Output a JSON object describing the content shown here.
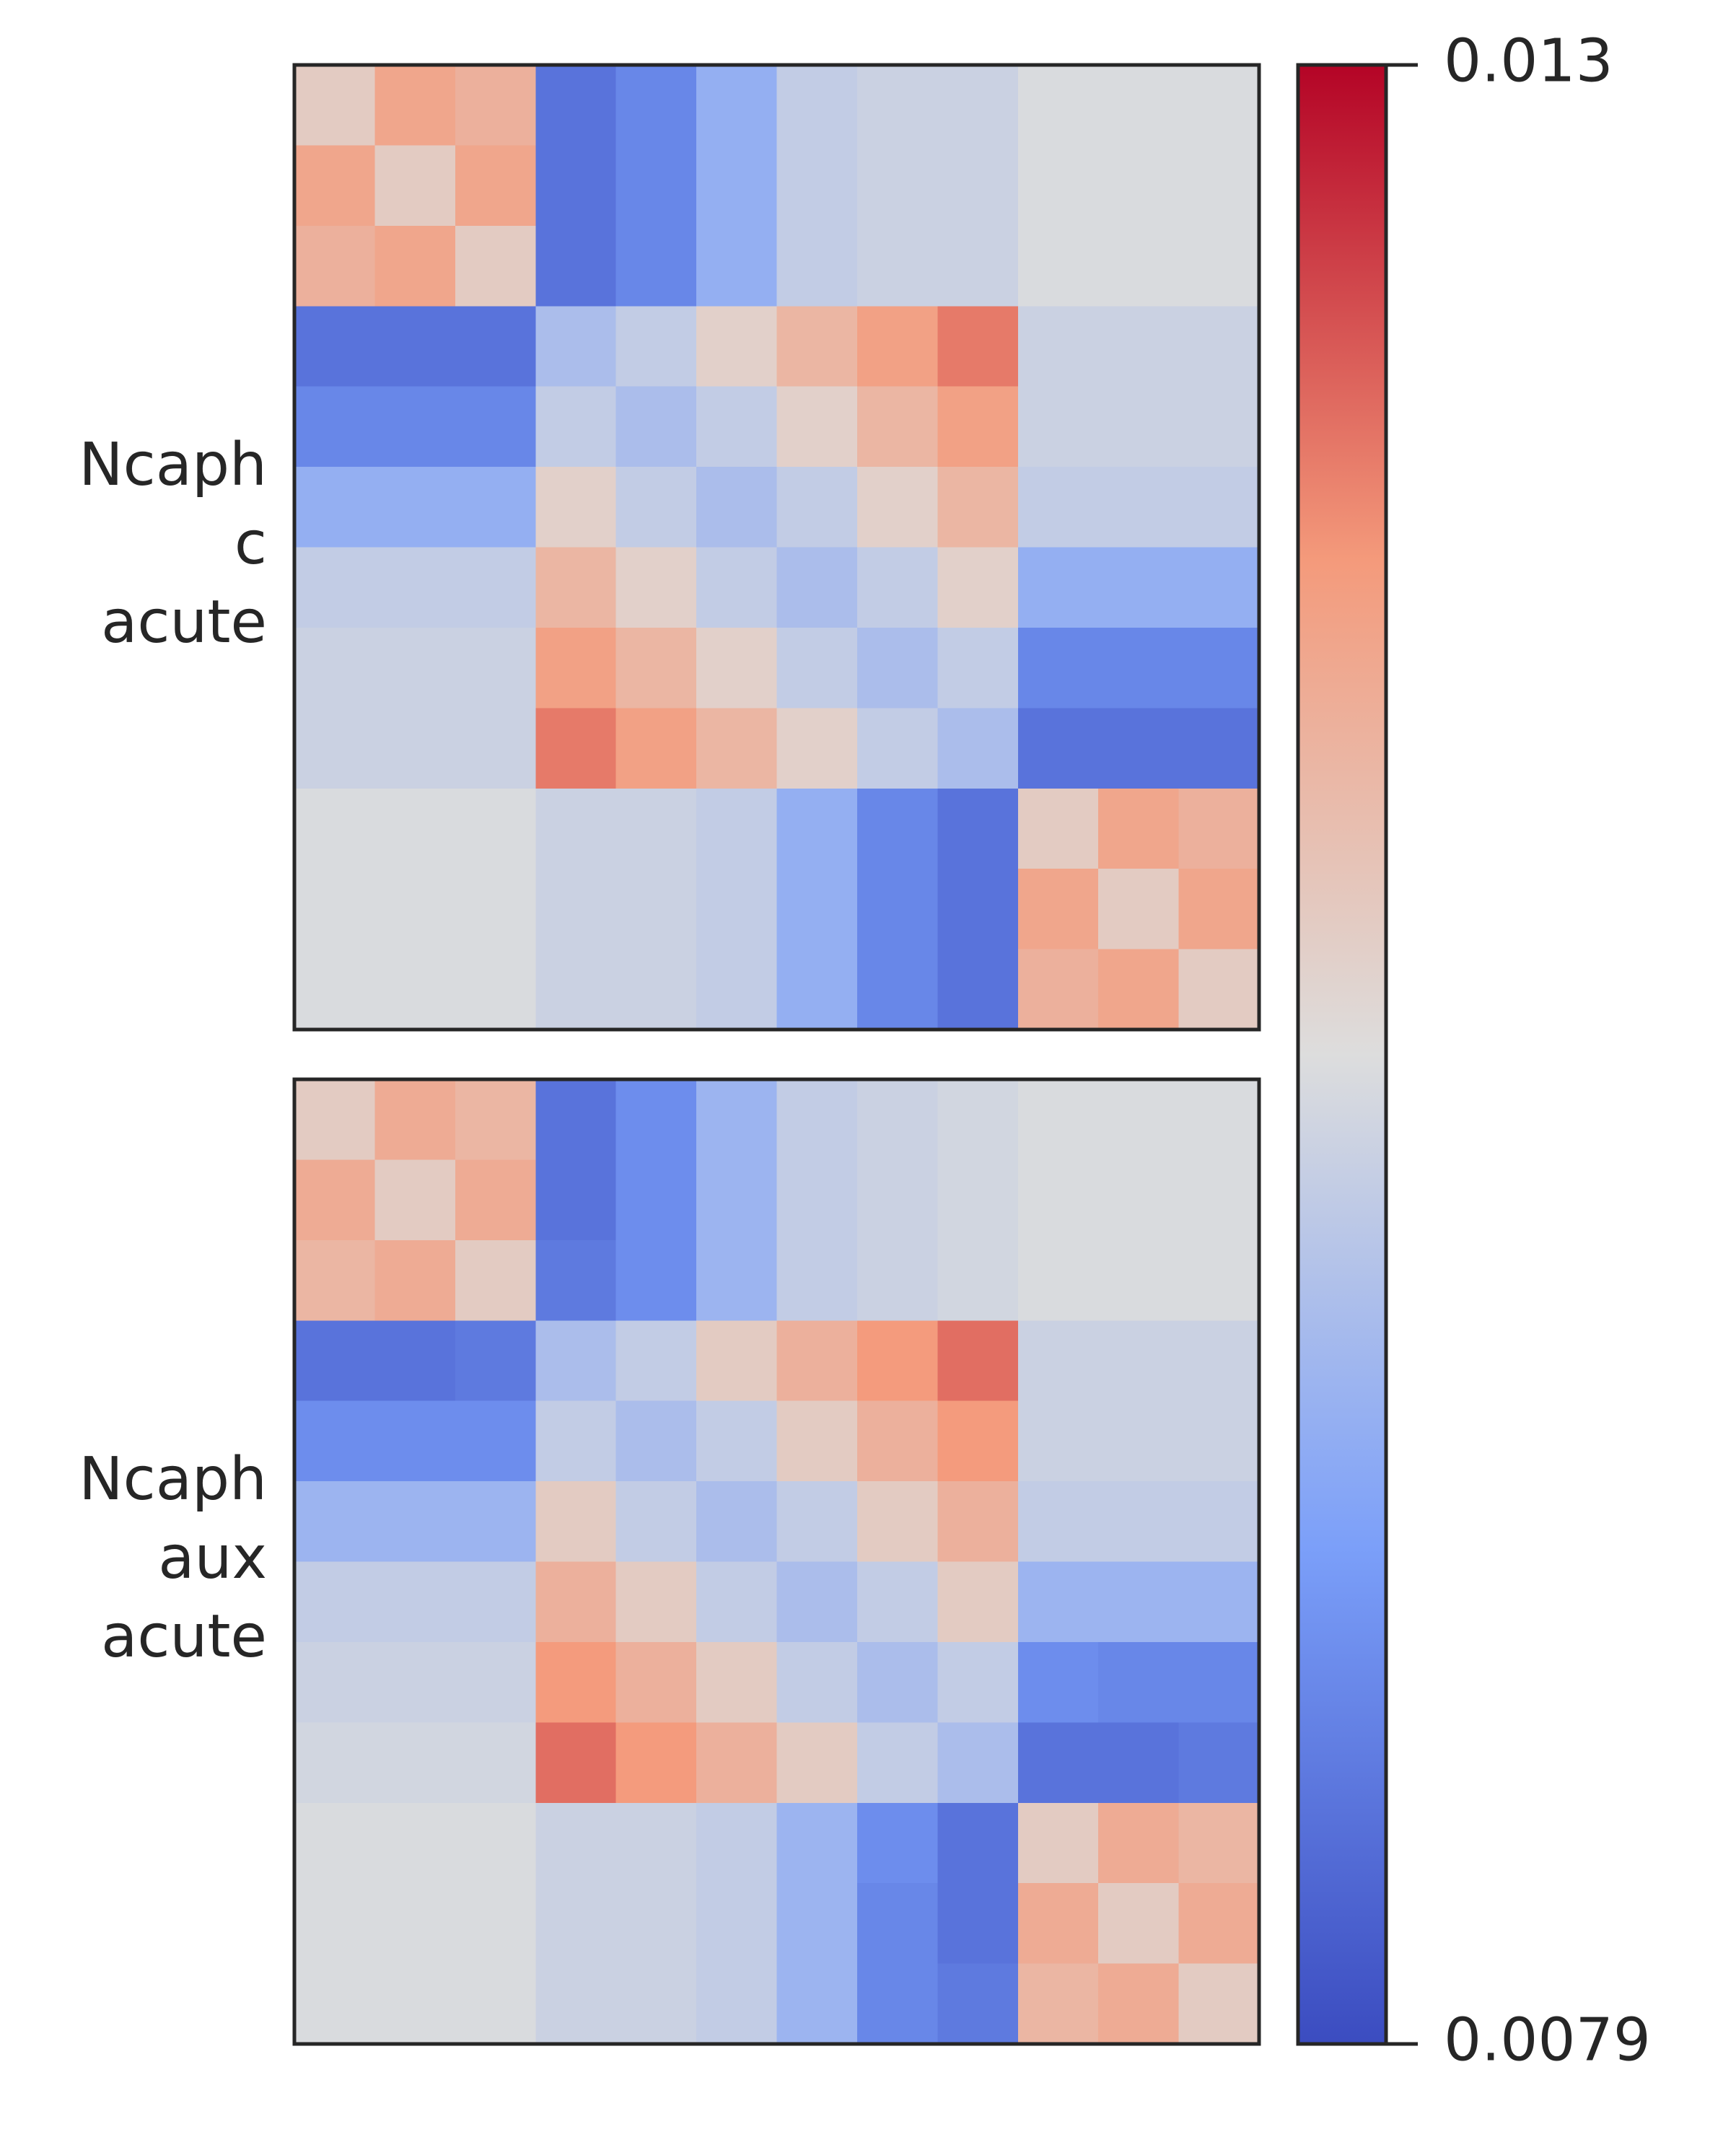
{
  "chart_data": [
    {
      "type": "heatmap",
      "ylabel": [
        "Ncaph",
        "c",
        "acute"
      ],
      "values": [
        [
          0.0108,
          0.0115,
          0.0113,
          0.0085,
          0.0088,
          0.0095,
          0.0101,
          0.0102,
          0.0102,
          0.0104,
          0.0104,
          0.0104
        ],
        [
          0.0115,
          0.0108,
          0.0115,
          0.0085,
          0.0088,
          0.0095,
          0.0101,
          0.0102,
          0.0102,
          0.0104,
          0.0104,
          0.0104
        ],
        [
          0.0113,
          0.0115,
          0.0108,
          0.0085,
          0.0088,
          0.0095,
          0.0101,
          0.0102,
          0.0102,
          0.0104,
          0.0104,
          0.0104
        ],
        [
          0.0085,
          0.0085,
          0.0085,
          0.0098,
          0.0101,
          0.0107,
          0.0112,
          0.0116,
          0.012,
          0.0102,
          0.0102,
          0.0102
        ],
        [
          0.0088,
          0.0088,
          0.0088,
          0.0101,
          0.0098,
          0.0101,
          0.0107,
          0.0112,
          0.0116,
          0.0102,
          0.0102,
          0.0102
        ],
        [
          0.0095,
          0.0095,
          0.0095,
          0.0107,
          0.0101,
          0.0098,
          0.0101,
          0.0107,
          0.0112,
          0.0101,
          0.0101,
          0.0101
        ],
        [
          0.0101,
          0.0101,
          0.0101,
          0.0112,
          0.0107,
          0.0101,
          0.0098,
          0.0101,
          0.0107,
          0.0095,
          0.0095,
          0.0095
        ],
        [
          0.0102,
          0.0102,
          0.0102,
          0.0116,
          0.0112,
          0.0107,
          0.0101,
          0.0098,
          0.0101,
          0.0088,
          0.0088,
          0.0088
        ],
        [
          0.0102,
          0.0102,
          0.0102,
          0.012,
          0.0116,
          0.0112,
          0.0107,
          0.0101,
          0.0098,
          0.0085,
          0.0085,
          0.0085
        ],
        [
          0.0104,
          0.0104,
          0.0104,
          0.0102,
          0.0102,
          0.0101,
          0.0095,
          0.0088,
          0.0085,
          0.0108,
          0.0115,
          0.0113
        ],
        [
          0.0104,
          0.0104,
          0.0104,
          0.0102,
          0.0102,
          0.0101,
          0.0095,
          0.0088,
          0.0085,
          0.0115,
          0.0108,
          0.0115
        ],
        [
          0.0104,
          0.0104,
          0.0104,
          0.0102,
          0.0102,
          0.0101,
          0.0095,
          0.0088,
          0.0085,
          0.0113,
          0.0115,
          0.0108
        ]
      ]
    },
    {
      "type": "heatmap",
      "ylabel": [
        "Ncaph",
        "aux",
        "acute"
      ],
      "values": [
        [
          0.0108,
          0.0114,
          0.0112,
          0.0085,
          0.0089,
          0.0096,
          0.0101,
          0.0102,
          0.0103,
          0.0104,
          0.0104,
          0.0104
        ],
        [
          0.0114,
          0.0108,
          0.0114,
          0.0085,
          0.0089,
          0.0096,
          0.0101,
          0.0102,
          0.0103,
          0.0104,
          0.0104,
          0.0104
        ],
        [
          0.0112,
          0.0114,
          0.0108,
          0.0086,
          0.0089,
          0.0096,
          0.0101,
          0.0102,
          0.0103,
          0.0104,
          0.0104,
          0.0104
        ],
        [
          0.0085,
          0.0085,
          0.0086,
          0.0098,
          0.0101,
          0.0108,
          0.0113,
          0.0117,
          0.0121,
          0.0102,
          0.0102,
          0.0102
        ],
        [
          0.0089,
          0.0089,
          0.0089,
          0.0101,
          0.0098,
          0.0101,
          0.0108,
          0.0113,
          0.0117,
          0.0102,
          0.0102,
          0.0102
        ],
        [
          0.0096,
          0.0096,
          0.0096,
          0.0108,
          0.0101,
          0.0098,
          0.0101,
          0.0108,
          0.0113,
          0.0101,
          0.0101,
          0.0101
        ],
        [
          0.0101,
          0.0101,
          0.0101,
          0.0113,
          0.0108,
          0.0101,
          0.0098,
          0.0101,
          0.0108,
          0.0096,
          0.0096,
          0.0096
        ],
        [
          0.0102,
          0.0102,
          0.0102,
          0.0117,
          0.0113,
          0.0108,
          0.0101,
          0.0098,
          0.0101,
          0.0089,
          0.0088,
          0.0088
        ],
        [
          0.0103,
          0.0103,
          0.0103,
          0.0121,
          0.0117,
          0.0113,
          0.0108,
          0.0101,
          0.0098,
          0.0085,
          0.0085,
          0.0086
        ],
        [
          0.0104,
          0.0104,
          0.0104,
          0.0102,
          0.0102,
          0.0101,
          0.0096,
          0.0089,
          0.0085,
          0.0108,
          0.0114,
          0.0112
        ],
        [
          0.0104,
          0.0104,
          0.0104,
          0.0102,
          0.0102,
          0.0101,
          0.0096,
          0.0088,
          0.0085,
          0.0114,
          0.0108,
          0.0114
        ],
        [
          0.0104,
          0.0104,
          0.0104,
          0.0102,
          0.0102,
          0.0101,
          0.0096,
          0.0088,
          0.0086,
          0.0112,
          0.0114,
          0.0108
        ]
      ]
    }
  ],
  "colorbar": {
    "lim": [
      0.0079,
      0.013
    ],
    "ticks": [
      0.013,
      0.0079
    ],
    "colormap": [
      "#3b4cc0",
      "#7b9ff9",
      "#dddddd",
      "#f49a7b",
      "#b40426"
    ]
  }
}
